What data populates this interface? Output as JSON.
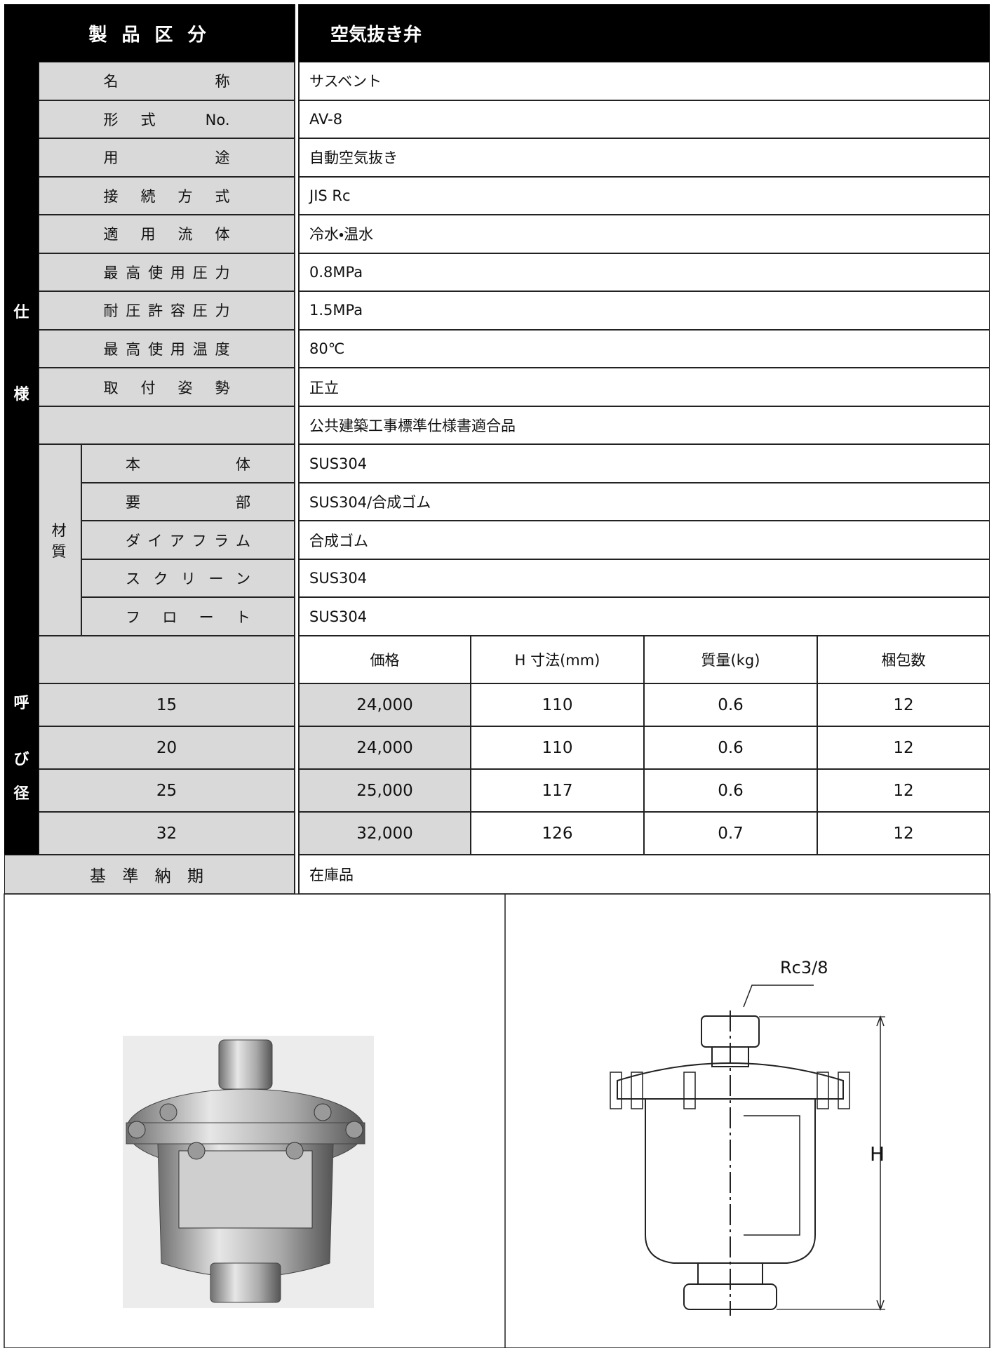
{
  "header": {
    "label": "製 品 区 分",
    "value": "空気抜き弁"
  },
  "spec": {
    "side_label": [
      "仕",
      "様"
    ],
    "rows": [
      {
        "label": "名称",
        "value": "サスベント"
      },
      {
        "label": "形式 No.",
        "value": "AV-8"
      },
      {
        "label": "用途",
        "value": "自動空気抜き"
      },
      {
        "label": "接続方式",
        "value": "JIS Rc"
      },
      {
        "label": "適用流体",
        "value": "冷水・温水"
      },
      {
        "label": "最高使用圧力",
        "value": "0.8MPa"
      },
      {
        "label": "耐圧許容圧力",
        "value": "1.5MPa"
      },
      {
        "label": "最高使用温度",
        "value": "80℃"
      },
      {
        "label": "取付姿勢",
        "value": "正立"
      },
      {
        "value": "公共建築工事標準仕様書適合品"
      }
    ],
    "material": {
      "label": "材質",
      "rows": [
        {
          "label": "本体",
          "value": "SUS304"
        },
        {
          "label": "要部",
          "value": "SUS304/合成ゴム"
        },
        {
          "label": "ダイアフラム",
          "value": "合成ゴム"
        },
        {
          "label": "スクリーン",
          "value": "SUS304"
        },
        {
          "label": "フロート",
          "value": "SUS304"
        }
      ]
    }
  },
  "sizes": {
    "side_label": [
      "呼",
      "び",
      "径"
    ],
    "columns": [
      "価格",
      "H 寸法(mm)",
      "質量(kg)",
      "梱包数"
    ],
    "rows": [
      [
        "15",
        "24,000",
        "110",
        "0.6",
        "12"
      ],
      [
        "20",
        "24,000",
        "110",
        "0.6",
        "12"
      ],
      [
        "25",
        "25,000",
        "117",
        "0.6",
        "12"
      ],
      [
        "32",
        "32,000",
        "126",
        "0.7",
        "12"
      ]
    ]
  },
  "delivery": {
    "label": "基 準 納 期",
    "value": "在庫品"
  },
  "drawing": {
    "port": "Rc3/8",
    "dimension": "H"
  }
}
